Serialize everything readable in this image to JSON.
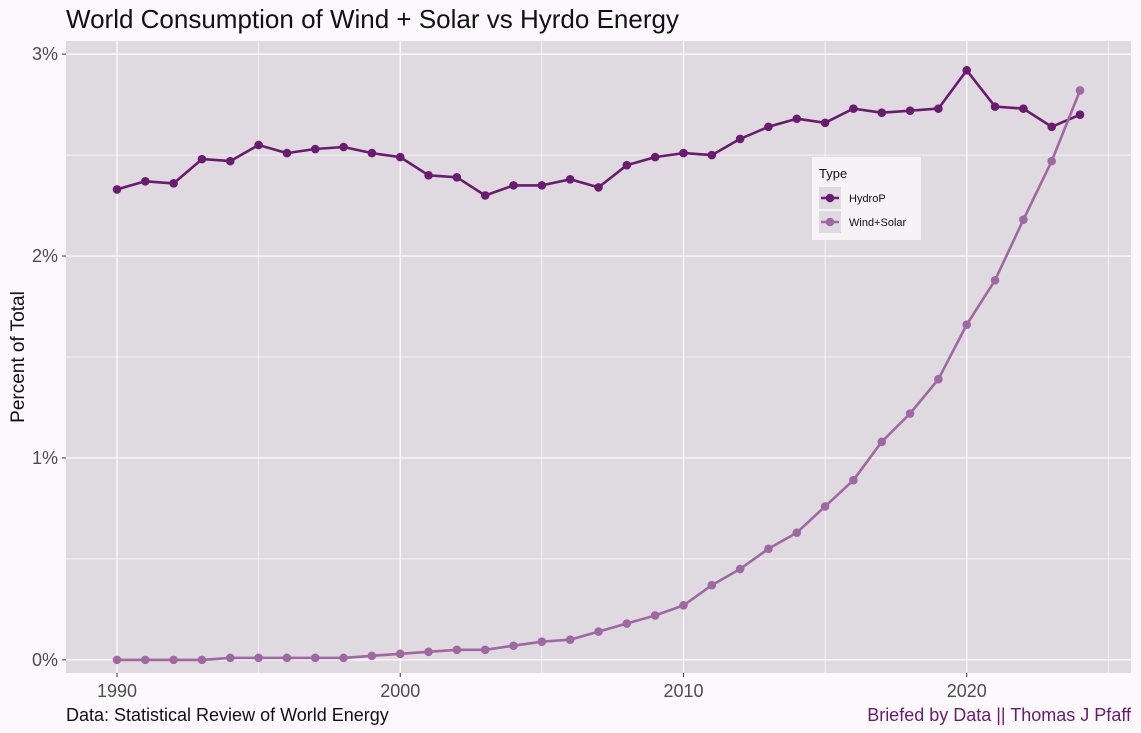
{
  "title": "World Consumption of Wind + Solar vs Hyrdo Energy",
  "source_note": "Data: Statistical Review of World Energy",
  "credit": "Briefed by Data || Thomas J Pfaff",
  "colors": {
    "background": "#fcf9fc",
    "panel": "#dfdadf",
    "grid": "#ffffff",
    "hydro": "#6a1b6f",
    "wind_solar": "#a068a2",
    "credit": "#6a1b6f"
  },
  "chart_data": {
    "type": "line",
    "title": "World Consumption of Wind + Solar vs Hyrdo Energy",
    "xlabel": "",
    "ylabel": "Percent of Total",
    "xlim": [
      1988.2,
      2025.8
    ],
    "ylim": [
      -0.065,
      3.065
    ],
    "x_ticks": [
      1990,
      2000,
      2010,
      2020
    ],
    "x_tick_labels": [
      "1990",
      "2000",
      "2010",
      "2020"
    ],
    "y_ticks": [
      0,
      1,
      2,
      3
    ],
    "y_tick_labels": [
      "0%",
      "1%",
      "2%",
      "3%"
    ],
    "grid": true,
    "legend": {
      "title": "Type",
      "placement": "inside upper-right",
      "entries": [
        "HydroP",
        "Wind+Solar"
      ]
    },
    "x": [
      1990,
      1991,
      1992,
      1993,
      1994,
      1995,
      1996,
      1997,
      1998,
      1999,
      2000,
      2001,
      2002,
      2003,
      2004,
      2005,
      2006,
      2007,
      2008,
      2009,
      2010,
      2011,
      2012,
      2013,
      2014,
      2015,
      2016,
      2017,
      2018,
      2019,
      2020,
      2021,
      2022,
      2023,
      2024
    ],
    "series": [
      {
        "name": "HydroP",
        "color": "#6a1b6f",
        "values": [
          2.33,
          2.37,
          2.36,
          2.48,
          2.47,
          2.55,
          2.51,
          2.53,
          2.54,
          2.51,
          2.49,
          2.4,
          2.39,
          2.3,
          2.35,
          2.35,
          2.38,
          2.34,
          2.45,
          2.49,
          2.51,
          2.5,
          2.58,
          2.64,
          2.68,
          2.66,
          2.73,
          2.71,
          2.72,
          2.73,
          2.92,
          2.74,
          2.73,
          2.64,
          2.7
        ]
      },
      {
        "name": "Wind+Solar",
        "color": "#a068a2",
        "values": [
          0.0,
          0.0,
          0.0,
          0.0,
          0.01,
          0.01,
          0.01,
          0.01,
          0.01,
          0.02,
          0.03,
          0.04,
          0.05,
          0.05,
          0.07,
          0.09,
          0.1,
          0.14,
          0.18,
          0.22,
          0.27,
          0.37,
          0.45,
          0.55,
          0.63,
          0.76,
          0.89,
          1.08,
          1.22,
          1.39,
          1.66,
          1.88,
          2.18,
          2.47,
          2.82
        ]
      }
    ]
  }
}
